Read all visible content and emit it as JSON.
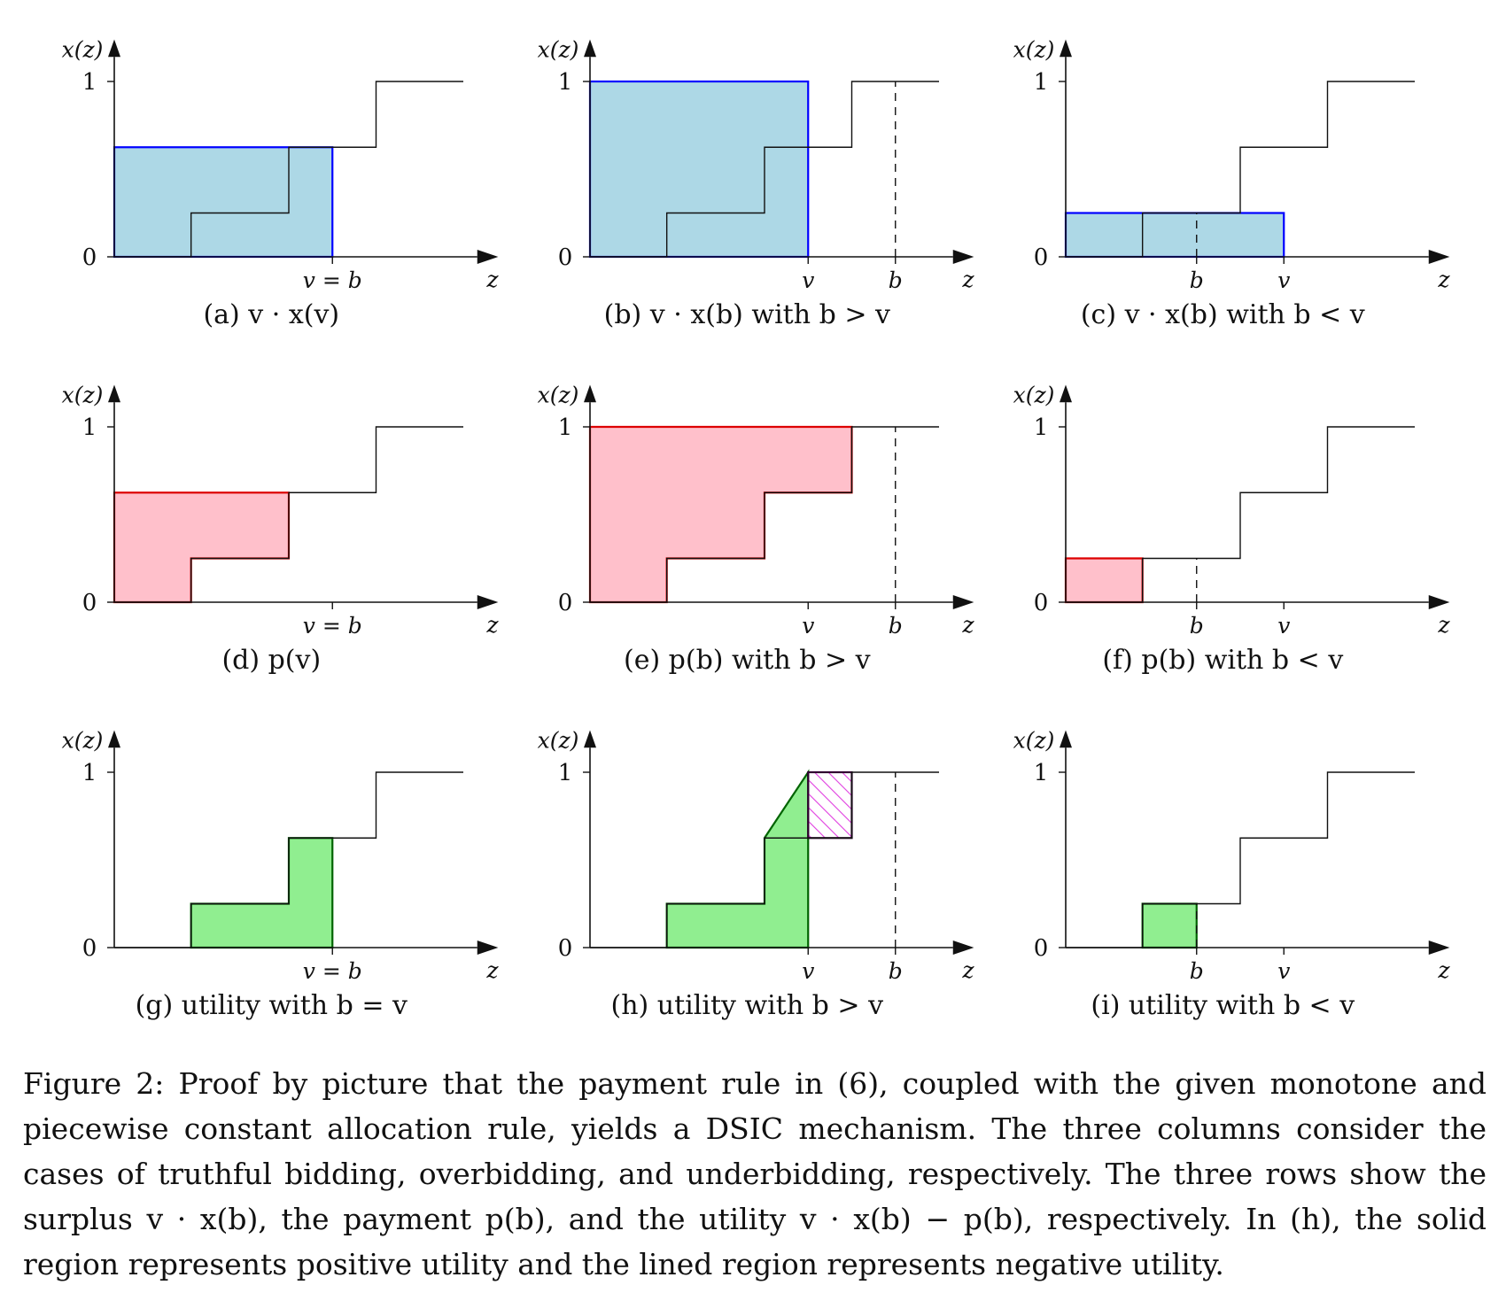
{
  "figure": {
    "axis_labels": {
      "y": "x(z)",
      "x": "z",
      "tick_one": "1",
      "tick_zero": "0"
    },
    "allocation_rule": {
      "z_breakpoints": [
        0.22,
        0.5,
        0.75
      ],
      "levels": [
        0,
        0.25,
        0.625,
        1
      ],
      "z_max": 1
    }
  },
  "panels": [
    {
      "id": "a",
      "row": 0,
      "col": 0,
      "caption": "(a) v · x(v)",
      "shade": "surplus",
      "vpos": 0.625,
      "bpos": 0.625,
      "z_labels": [
        "v = b"
      ],
      "dashed_b": false
    },
    {
      "id": "b",
      "row": 0,
      "col": 1,
      "caption": "(b) v · x(b) with b > v",
      "shade": "surplus",
      "vpos": 0.625,
      "bpos": 0.875,
      "z_labels": [
        "v",
        "b"
      ],
      "dashed_b": true
    },
    {
      "id": "c",
      "row": 0,
      "col": 2,
      "caption": "(c) v · x(b) with b < v",
      "shade": "surplus",
      "vpos": 0.625,
      "bpos": 0.375,
      "z_labels": [
        "b",
        "v"
      ],
      "dashed_b": true
    },
    {
      "id": "d",
      "row": 1,
      "col": 0,
      "caption": "(d) p(v)",
      "shade": "payment",
      "vpos": 0.625,
      "bpos": 0.625,
      "z_labels": [
        "v = b"
      ],
      "dashed_b": false
    },
    {
      "id": "e",
      "row": 1,
      "col": 1,
      "caption": "(e) p(b) with b > v",
      "shade": "payment",
      "vpos": 0.625,
      "bpos": 0.875,
      "z_labels": [
        "v",
        "b"
      ],
      "dashed_b": true
    },
    {
      "id": "f",
      "row": 1,
      "col": 2,
      "caption": "(f) p(b) with b < v",
      "shade": "payment",
      "vpos": 0.625,
      "bpos": 0.375,
      "z_labels": [
        "b",
        "v"
      ],
      "dashed_b": true
    },
    {
      "id": "g",
      "row": 2,
      "col": 0,
      "caption": "(g) utility with b = v",
      "shade": "utility",
      "vpos": 0.625,
      "bpos": 0.625,
      "z_labels": [
        "v = b"
      ],
      "dashed_b": false
    },
    {
      "id": "h",
      "row": 2,
      "col": 1,
      "caption": "(h) utility with b > v",
      "shade": "utility",
      "vpos": 0.625,
      "bpos": 0.875,
      "z_labels": [
        "v",
        "b"
      ],
      "dashed_b": true
    },
    {
      "id": "i",
      "row": 2,
      "col": 2,
      "caption": "(i) utility with b < v",
      "shade": "utility",
      "vpos": 0.625,
      "bpos": 0.375,
      "z_labels": [
        "b",
        "v"
      ],
      "dashed_b": true
    }
  ],
  "colors": {
    "surplus_fill": "#add8e6",
    "surplus_stroke": "#0000ff",
    "payment_fill": "#ffc0cb",
    "payment_stroke": "#dd0000",
    "utility_fill": "#90ee90",
    "utility_stroke": "#006400",
    "negative_hatch": "#e040e0",
    "negative_stroke": "#300030"
  },
  "caption": "Figure 2: Proof by picture that the payment rule in (6), coupled with the given monotone and piecewise constant allocation rule, yields a DSIC mechanism. The three columns consider the cases of truthful bidding, overbidding, and underbidding, respectively. The three rows show the surplus v · x(b), the payment p(b), and the utility v · x(b) − p(b), respectively. In (h), the solid region represents positive utility and the lined region represents negative utility."
}
